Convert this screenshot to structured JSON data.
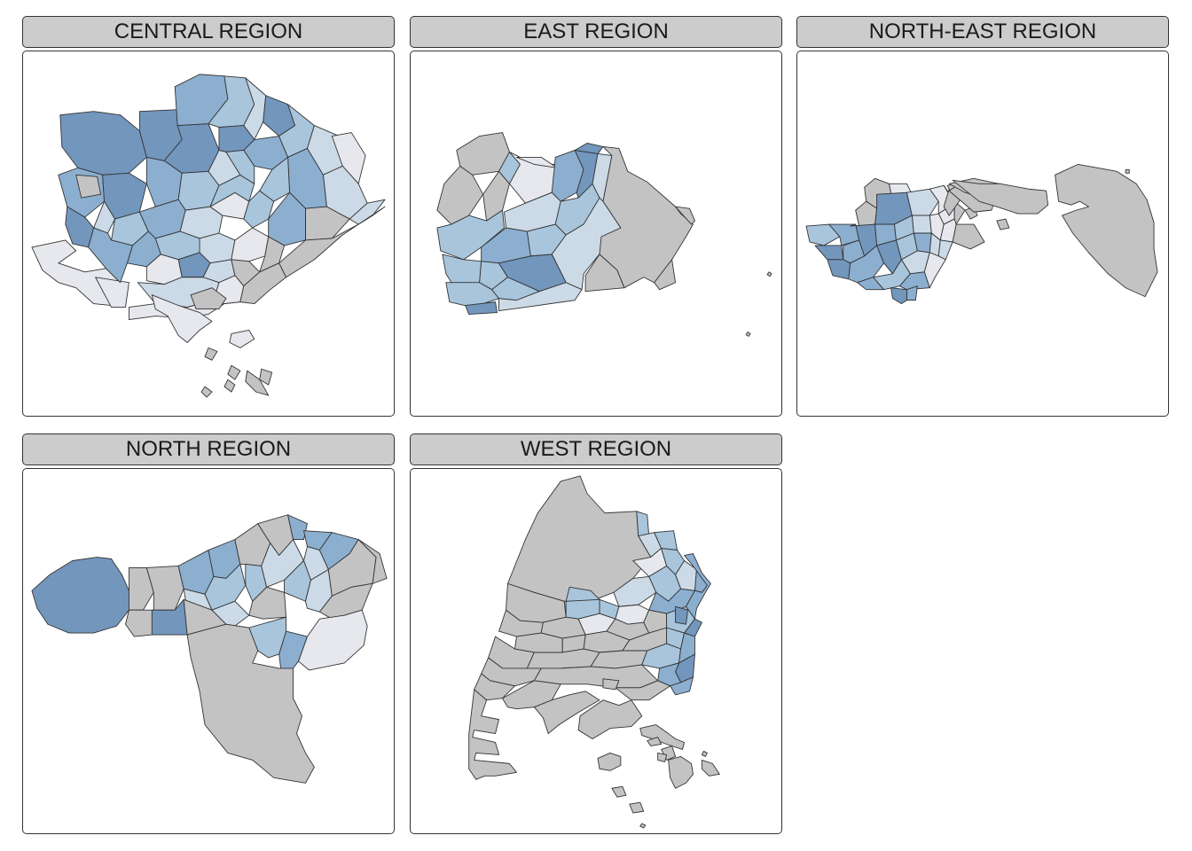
{
  "facets": [
    {
      "id": "central",
      "label": "CENTRAL REGION"
    },
    {
      "id": "east",
      "label": "EAST REGION"
    },
    {
      "id": "north_east",
      "label": "NORTH-EAST REGION"
    },
    {
      "id": "north",
      "label": "NORTH REGION"
    },
    {
      "id": "west",
      "label": "WEST REGION"
    }
  ],
  "colors": {
    "missing": "#c3c3c3",
    "scale": [
      "#e6e8ee",
      "#cbdae6",
      "#a8c5dc",
      "#8cafd0",
      "#7396bd",
      "#6b8fb8"
    ],
    "border": "#333333",
    "strip_background": "#cccccc"
  }
}
